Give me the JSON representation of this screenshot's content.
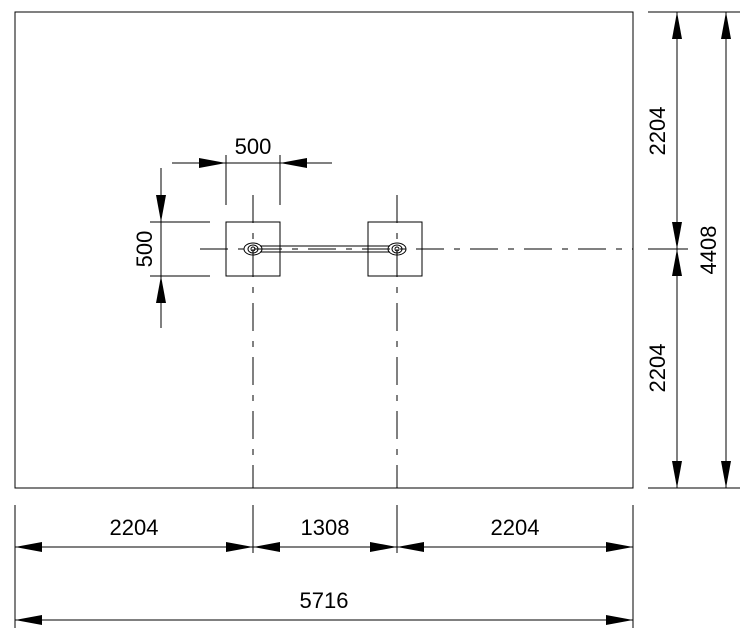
{
  "dimensions": {
    "bottom_left": "2204",
    "bottom_middle": "1308",
    "bottom_right": "2204",
    "bottom_total": "5716",
    "right_top": "2204",
    "right_bottom": "2204",
    "right_total": "4408",
    "pad_width": "500",
    "pad_height": "500"
  }
}
